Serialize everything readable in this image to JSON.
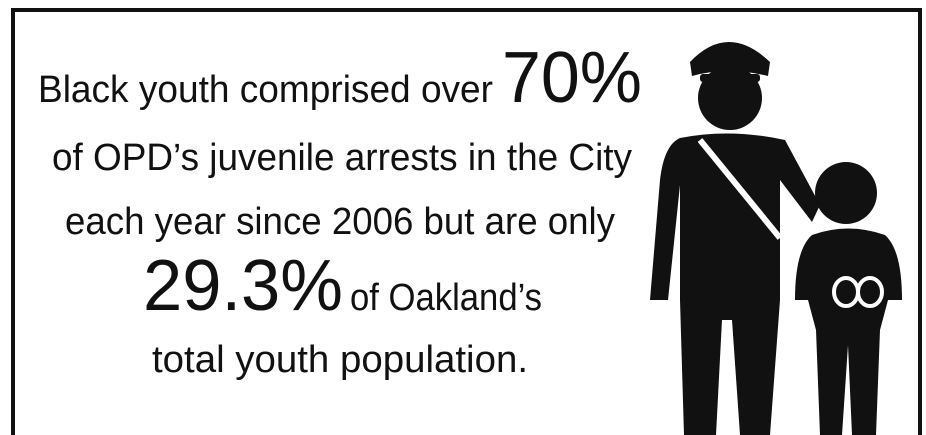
{
  "infographic": {
    "line1": {
      "text": "Black youth comprised over",
      "highlight": "70%"
    },
    "line2": "of OPD’s juvenile arrests in the City",
    "line3": "each year since 2006  but are only",
    "line4": {
      "highlight": "29.3%",
      "text": "of Oakland’s"
    },
    "line5": "total youth population."
  }
}
